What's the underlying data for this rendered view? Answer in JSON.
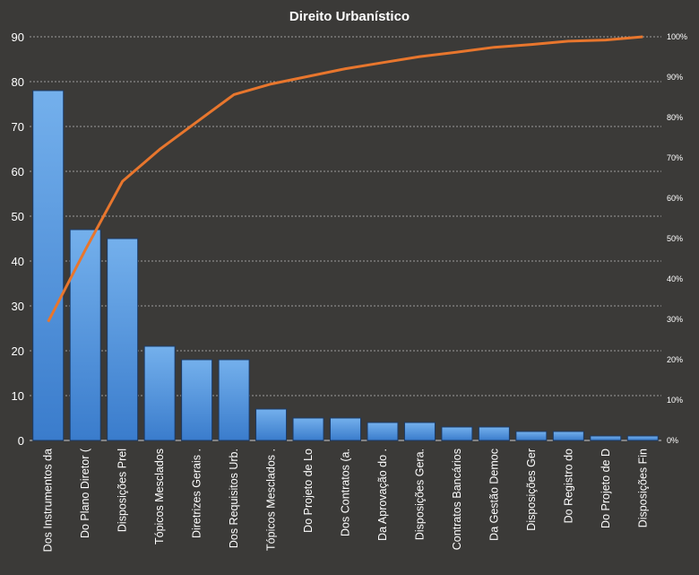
{
  "chart_data": {
    "type": "bar",
    "title": "Direito  Urbanístico",
    "categories": [
      "Dos Instrumentos  da",
      "Do Plano Diretor (",
      "Disposições Prel",
      "Tópicos Mesclados",
      "Diretrizes Gerais .",
      "Dos Requisitos Urb.",
      "Tópicos Mesclados .",
      "Do Projeto de Lo",
      "Dos Contratos (a.",
      "Da Aprovação do  .",
      "Disposições Gera.",
      "Contratos Bancários",
      "Da Gestão Democ",
      "Disposições Ger",
      "Do Registro do",
      "Do Projeto de D",
      "Disposições Fin"
    ],
    "series": [
      {
        "type": "bar",
        "values": [
          78,
          47,
          45,
          21,
          18,
          18,
          7,
          5,
          5,
          4,
          4,
          3,
          3,
          2,
          2,
          1,
          1
        ]
      },
      {
        "type": "line",
        "axis": "right",
        "values": [
          29.4,
          47.2,
          64.2,
          72.1,
          78.9,
          85.7,
          88.3,
          90.2,
          92.1,
          93.6,
          95.1,
          96.2,
          97.4,
          98.1,
          98.9,
          99.2,
          100
        ]
      }
    ],
    "y_left": {
      "ylim": [
        0,
        90
      ],
      "ticks": [
        "0",
        "10",
        "20",
        "30",
        "40",
        "50",
        "60",
        "70",
        "80",
        "90"
      ]
    },
    "y_right": {
      "ylim": [
        0,
        100
      ],
      "ticks": [
        "0%",
        "10%",
        "20%",
        "30%",
        "40%",
        "50%",
        "60%",
        "70%",
        "80%",
        "90%",
        "100%"
      ]
    },
    "grid": true,
    "legend": "none",
    "colors": {
      "background": "#3b3a38",
      "bar_top": "#74b0ec",
      "bar_bottom": "#3a7ccc",
      "bar_edge": "#1b3a66",
      "line": "#e8762d",
      "text": "#ffffff"
    }
  }
}
